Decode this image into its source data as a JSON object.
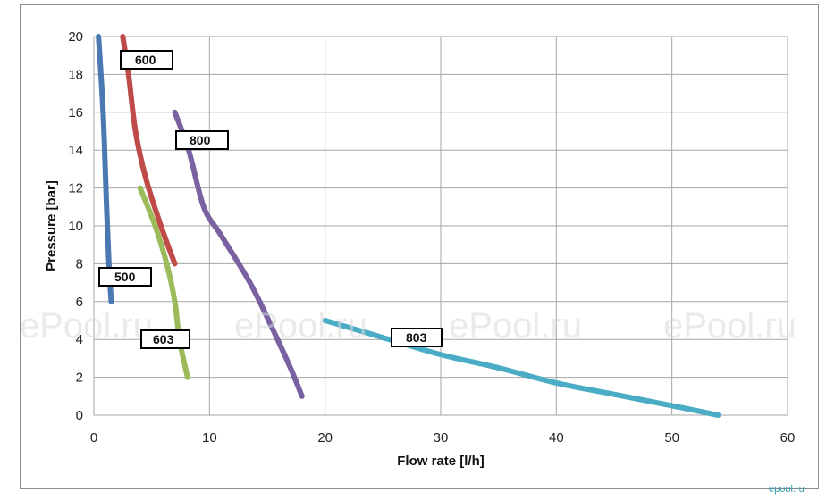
{
  "chart_data": {
    "type": "line",
    "title": "",
    "xlabel": "Flow rate [l/h]",
    "ylabel": "Pressure [bar]",
    "xlim": [
      0,
      60
    ],
    "ylim": [
      0,
      20
    ],
    "x_ticks": [
      "0",
      "10",
      "20",
      "30",
      "40",
      "50",
      "60"
    ],
    "y_ticks": [
      "0",
      "2",
      "4",
      "6",
      "8",
      "10",
      "12",
      "14",
      "16",
      "18",
      "20"
    ],
    "grid": true,
    "legend": "none",
    "series": [
      {
        "name": "500",
        "color": "#4a78b0",
        "points": [
          [
            0.4,
            20
          ],
          [
            0.8,
            16
          ],
          [
            1.1,
            11
          ],
          [
            1.3,
            8
          ],
          [
            1.5,
            6
          ]
        ]
      },
      {
        "name": "600",
        "color": "#bf4b48",
        "points": [
          [
            2.5,
            20
          ],
          [
            3.0,
            18
          ],
          [
            3.6,
            15
          ],
          [
            4.5,
            12.5
          ],
          [
            5.8,
            10
          ],
          [
            7.0,
            8
          ]
        ]
      },
      {
        "name": "603",
        "color": "#9bbb59",
        "points": [
          [
            4.0,
            12
          ],
          [
            5.3,
            10
          ],
          [
            6.3,
            8
          ],
          [
            7.0,
            6
          ],
          [
            7.4,
            4
          ],
          [
            8.1,
            2
          ]
        ]
      },
      {
        "name": "800",
        "color": "#7a61a1",
        "points": [
          [
            7.0,
            16
          ],
          [
            8.2,
            14
          ],
          [
            9.5,
            11
          ],
          [
            11.0,
            9.5
          ],
          [
            13.5,
            7
          ],
          [
            15.5,
            4.5
          ],
          [
            17.0,
            2.5
          ],
          [
            18.0,
            1
          ]
        ]
      },
      {
        "name": "803",
        "color": "#4bacc6",
        "points": [
          [
            20,
            5
          ],
          [
            25,
            4.1
          ],
          [
            30,
            3.2
          ],
          [
            35,
            2.5
          ],
          [
            40,
            1.7
          ],
          [
            45,
            1.1
          ],
          [
            50,
            0.5
          ],
          [
            54,
            0
          ]
        ]
      }
    ],
    "annotations": [
      {
        "text": "500",
        "series": "500"
      },
      {
        "text": "600",
        "series": "600"
      },
      {
        "text": "603",
        "series": "603"
      },
      {
        "text": "800",
        "series": "800"
      },
      {
        "text": "803",
        "series": "803"
      }
    ]
  },
  "watermark": {
    "text": "ePool.ru",
    "corner_text": "epool.ru"
  }
}
